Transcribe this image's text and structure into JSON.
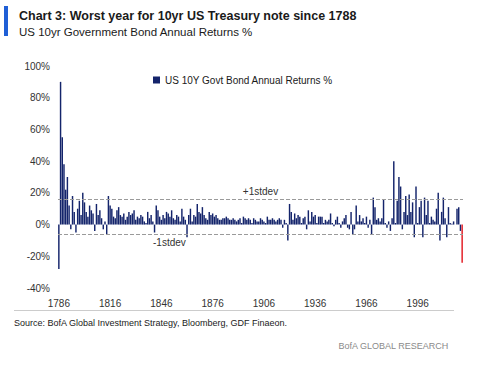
{
  "chart_data": {
    "type": "bar",
    "title": "Chart 3: Worst year for 10yr US Treasury note since 1788",
    "subtitle": "US 10yr Government Bond Annual Returns %",
    "source": "Source: BofA Global Investment Strategy, Bloomberg, GDF Finaeon.",
    "footer": "BofA GLOBAL RESEARCH",
    "legend": "upper left",
    "grid": false,
    "categories": [
      "1786",
      null,
      null,
      null,
      null,
      null,
      null,
      null,
      null,
      null,
      null,
      null,
      null,
      null,
      null,
      null,
      null,
      null,
      null,
      null,
      null,
      null,
      null,
      null,
      null,
      null,
      null,
      null,
      null,
      null,
      "1816",
      null,
      null,
      null,
      null,
      null,
      null,
      null,
      null,
      null,
      null,
      null,
      null,
      null,
      null,
      null,
      null,
      null,
      null,
      null,
      null,
      null,
      null,
      null,
      null,
      null,
      null,
      null,
      null,
      null,
      "1846",
      null,
      null,
      null,
      null,
      null,
      null,
      null,
      null,
      null,
      null,
      null,
      null,
      null,
      null,
      null,
      null,
      null,
      null,
      null,
      null,
      null,
      null,
      null,
      null,
      null,
      null,
      null,
      null,
      null,
      "1876",
      null,
      null,
      null,
      null,
      null,
      null,
      null,
      null,
      null,
      null,
      null,
      null,
      null,
      null,
      null,
      null,
      null,
      null,
      null,
      null,
      null,
      null,
      null,
      null,
      null,
      null,
      null,
      null,
      null,
      "1906",
      null,
      null,
      null,
      null,
      null,
      null,
      null,
      null,
      null,
      null,
      null,
      null,
      null,
      null,
      null,
      null,
      null,
      null,
      null,
      null,
      null,
      null,
      null,
      null,
      null,
      null,
      null,
      null,
      null,
      "1936",
      null,
      null,
      null,
      null,
      null,
      null,
      null,
      null,
      null,
      null,
      null,
      null,
      null,
      null,
      null,
      null,
      null,
      null,
      null,
      null,
      null,
      null,
      null,
      null,
      null,
      null,
      null,
      null,
      null,
      "1966",
      null,
      null,
      null,
      null,
      null,
      null,
      null,
      null,
      null,
      null,
      null,
      null,
      null,
      null,
      null,
      null,
      null,
      null,
      null,
      null,
      null,
      null,
      null,
      null,
      null,
      null,
      null,
      null,
      null,
      "1996",
      null,
      null,
      null,
      null,
      null,
      null,
      null,
      null,
      null,
      null,
      null,
      null,
      null,
      null,
      null,
      null,
      null,
      null,
      null,
      null,
      null,
      null,
      null,
      null,
      null,
      null
    ],
    "series": [
      {
        "name": "US 10Y Govt Bond Annual Returns %",
        "values": [
          -28,
          90,
          55,
          38,
          22,
          30,
          12,
          -3,
          18,
          8,
          -5,
          10,
          15,
          6,
          20,
          14,
          8,
          5,
          12,
          9,
          7,
          -4,
          13,
          6,
          9,
          4,
          -3,
          2,
          -6,
          18,
          12,
          10,
          5,
          4,
          9,
          11,
          6,
          5,
          7,
          3,
          5,
          8,
          6,
          7,
          9,
          3,
          5,
          4,
          6,
          5,
          2,
          1,
          8,
          4,
          6,
          2,
          -5,
          12,
          9,
          5,
          3,
          6,
          4,
          8,
          7,
          5,
          9,
          4,
          3,
          6,
          5,
          2,
          10,
          5,
          3,
          -8,
          6,
          10,
          2,
          6,
          5,
          13,
          8,
          7,
          11,
          6,
          4,
          3,
          8,
          6,
          7,
          5,
          6,
          4,
          3,
          3,
          4,
          4,
          5,
          4,
          3,
          3,
          4,
          3,
          2,
          3,
          4,
          1,
          5,
          4,
          3,
          4,
          3,
          1,
          4,
          3,
          2,
          2,
          4,
          3,
          2,
          1,
          5,
          3,
          3,
          4,
          3,
          2,
          3,
          4,
          3,
          -2,
          3,
          1,
          -10,
          13,
          8,
          3,
          7,
          4,
          6,
          5,
          1,
          4,
          5,
          -3,
          9,
          2,
          8,
          5,
          6,
          1,
          5,
          5,
          5,
          1,
          3,
          2,
          3,
          7,
          1,
          -1,
          3,
          5,
          1,
          -2,
          2,
          4,
          6,
          -2,
          -3,
          8,
          -6,
          -3,
          12,
          2,
          6,
          2,
          4,
          1,
          5,
          -2,
          3,
          -6,
          17,
          11,
          3,
          4,
          2,
          4,
          16,
          1,
          -2,
          2,
          -4,
          4,
          40,
          1,
          15,
          30,
          24,
          -3,
          8,
          18,
          6,
          19,
          8,
          14,
          -8,
          24,
          1,
          11,
          15,
          -8,
          17,
          6,
          15,
          1,
          5,
          3,
          2,
          10,
          20,
          -10,
          8,
          17,
          4,
          -8,
          11,
          1,
          0.5,
          2,
          0,
          10,
          11,
          -4,
          -24
        ],
        "colors": [
          "#14246b",
          "#14246b",
          "#14246b",
          "#14246b",
          "#14246b",
          "#14246b",
          "#14246b",
          "#14246b",
          "#14246b",
          "#14246b",
          "#14246b",
          "#14246b",
          "#14246b",
          "#14246b",
          "#14246b",
          "#14246b",
          "#14246b",
          "#14246b",
          "#14246b",
          "#14246b",
          "#14246b",
          "#14246b",
          "#14246b",
          "#14246b",
          "#14246b",
          "#14246b",
          "#14246b",
          "#14246b",
          "#14246b",
          "#14246b",
          "#14246b",
          "#14246b",
          "#14246b",
          "#14246b",
          "#14246b",
          "#14246b",
          "#14246b",
          "#14246b",
          "#14246b",
          "#14246b",
          "#14246b",
          "#14246b",
          "#14246b",
          "#14246b",
          "#14246b",
          "#14246b",
          "#14246b",
          "#14246b",
          "#14246b",
          "#14246b",
          "#14246b",
          "#14246b",
          "#14246b",
          "#14246b",
          "#14246b",
          "#14246b",
          "#14246b",
          "#14246b",
          "#14246b",
          "#14246b",
          "#14246b",
          "#14246b",
          "#14246b",
          "#14246b",
          "#14246b",
          "#14246b",
          "#14246b",
          "#14246b",
          "#14246b",
          "#14246b",
          "#14246b",
          "#14246b",
          "#14246b",
          "#14246b",
          "#14246b",
          "#14246b",
          "#14246b",
          "#14246b",
          "#14246b",
          "#14246b",
          "#14246b",
          "#14246b",
          "#14246b",
          "#14246b",
          "#14246b",
          "#14246b",
          "#14246b",
          "#14246b",
          "#14246b",
          "#14246b",
          "#14246b",
          "#14246b",
          "#14246b",
          "#14246b",
          "#14246b",
          "#14246b",
          "#14246b",
          "#14246b",
          "#14246b",
          "#14246b",
          "#14246b",
          "#14246b",
          "#14246b",
          "#14246b",
          "#14246b",
          "#14246b",
          "#14246b",
          "#14246b",
          "#14246b",
          "#14246b",
          "#14246b",
          "#14246b",
          "#14246b",
          "#14246b",
          "#14246b",
          "#14246b",
          "#14246b",
          "#14246b",
          "#14246b",
          "#14246b",
          "#14246b",
          "#14246b",
          "#14246b",
          "#14246b",
          "#14246b",
          "#14246b",
          "#14246b",
          "#14246b",
          "#14246b",
          "#14246b",
          "#14246b",
          "#14246b",
          "#14246b",
          "#14246b",
          "#14246b",
          "#14246b",
          "#14246b",
          "#14246b",
          "#14246b",
          "#14246b",
          "#14246b",
          "#14246b",
          "#14246b",
          "#14246b",
          "#14246b",
          "#14246b",
          "#14246b",
          "#14246b",
          "#14246b",
          "#14246b",
          "#14246b",
          "#14246b",
          "#14246b",
          "#14246b",
          "#14246b",
          "#14246b",
          "#14246b",
          "#14246b",
          "#14246b",
          "#14246b",
          "#14246b",
          "#14246b",
          "#14246b",
          "#14246b",
          "#14246b",
          "#14246b",
          "#14246b",
          "#14246b",
          "#14246b",
          "#14246b",
          "#14246b",
          "#14246b",
          "#14246b",
          "#14246b",
          "#14246b",
          "#14246b",
          "#14246b",
          "#14246b",
          "#14246b",
          "#14246b",
          "#14246b",
          "#14246b",
          "#14246b",
          "#14246b",
          "#14246b",
          "#14246b",
          "#14246b",
          "#14246b",
          "#14246b",
          "#14246b",
          "#14246b",
          "#14246b",
          "#14246b",
          "#14246b",
          "#14246b",
          "#14246b",
          "#14246b",
          "#14246b",
          "#14246b",
          "#14246b",
          "#14246b",
          "#14246b",
          "#14246b",
          "#14246b",
          "#14246b",
          "#14246b",
          "#14246b",
          "#14246b",
          "#14246b",
          "#14246b",
          "#14246b",
          "#14246b",
          "#14246b",
          "#14246b",
          "#14246b",
          "#14246b",
          "#14246b",
          "#14246b",
          "#14246b",
          "#14246b",
          "#14246b",
          "#14246b",
          "#14246b",
          "#14246b",
          "#14246b",
          "#14246b",
          "#14246b",
          "#14246b",
          "#14246b",
          "#14246b",
          "#14246b",
          "#14246b",
          "#14246b",
          "#14246b",
          "#14246b",
          "#14246b",
          "#e31b23"
        ]
      }
    ],
    "reference_lines": [
      {
        "label": "+1stdev",
        "value": 16
      },
      {
        "label": "-1stdev",
        "value": -6
      }
    ],
    "ylim": [
      -40,
      100
    ],
    "yticks": [
      {
        "value": -40,
        "label": "-40%"
      },
      {
        "value": -20,
        "label": "-20%"
      },
      {
        "value": 0,
        "label": "0%"
      },
      {
        "value": 20,
        "label": "20%"
      },
      {
        "value": 40,
        "label": "40%"
      },
      {
        "value": 60,
        "label": "60%"
      },
      {
        "value": 80,
        "label": "80%"
      },
      {
        "value": 100,
        "label": "100%"
      }
    ]
  }
}
